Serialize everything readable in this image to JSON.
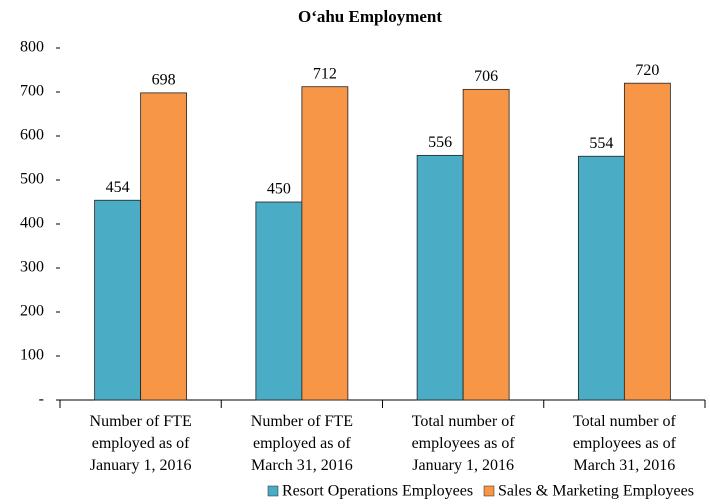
{
  "chart_data": {
    "type": "bar",
    "title": "O‘ahu Employment",
    "categories": [
      [
        "Number of FTE",
        "employed as of",
        "January 1, 2016"
      ],
      [
        "Number of FTE",
        "employed as of",
        "March 31, 2016"
      ],
      [
        "Total number of",
        "employees as of",
        "January 1, 2016"
      ],
      [
        "Total number of",
        "employees as of",
        "March 31, 2016"
      ]
    ],
    "series": [
      {
        "name": "Resort Operations Employees",
        "color": "#4BACC6",
        "values": [
          454,
          450,
          556,
          554
        ]
      },
      {
        "name": "Sales & Marketing Employees",
        "color": "#F79646",
        "values": [
          698,
          712,
          706,
          720
        ]
      }
    ],
    "ylim": [
      0,
      800
    ],
    "yticks": [
      {
        "value": 0,
        "label": "-"
      },
      100,
      200,
      300,
      400,
      500,
      600,
      700,
      800
    ],
    "grid": false,
    "legend": "bottom"
  }
}
